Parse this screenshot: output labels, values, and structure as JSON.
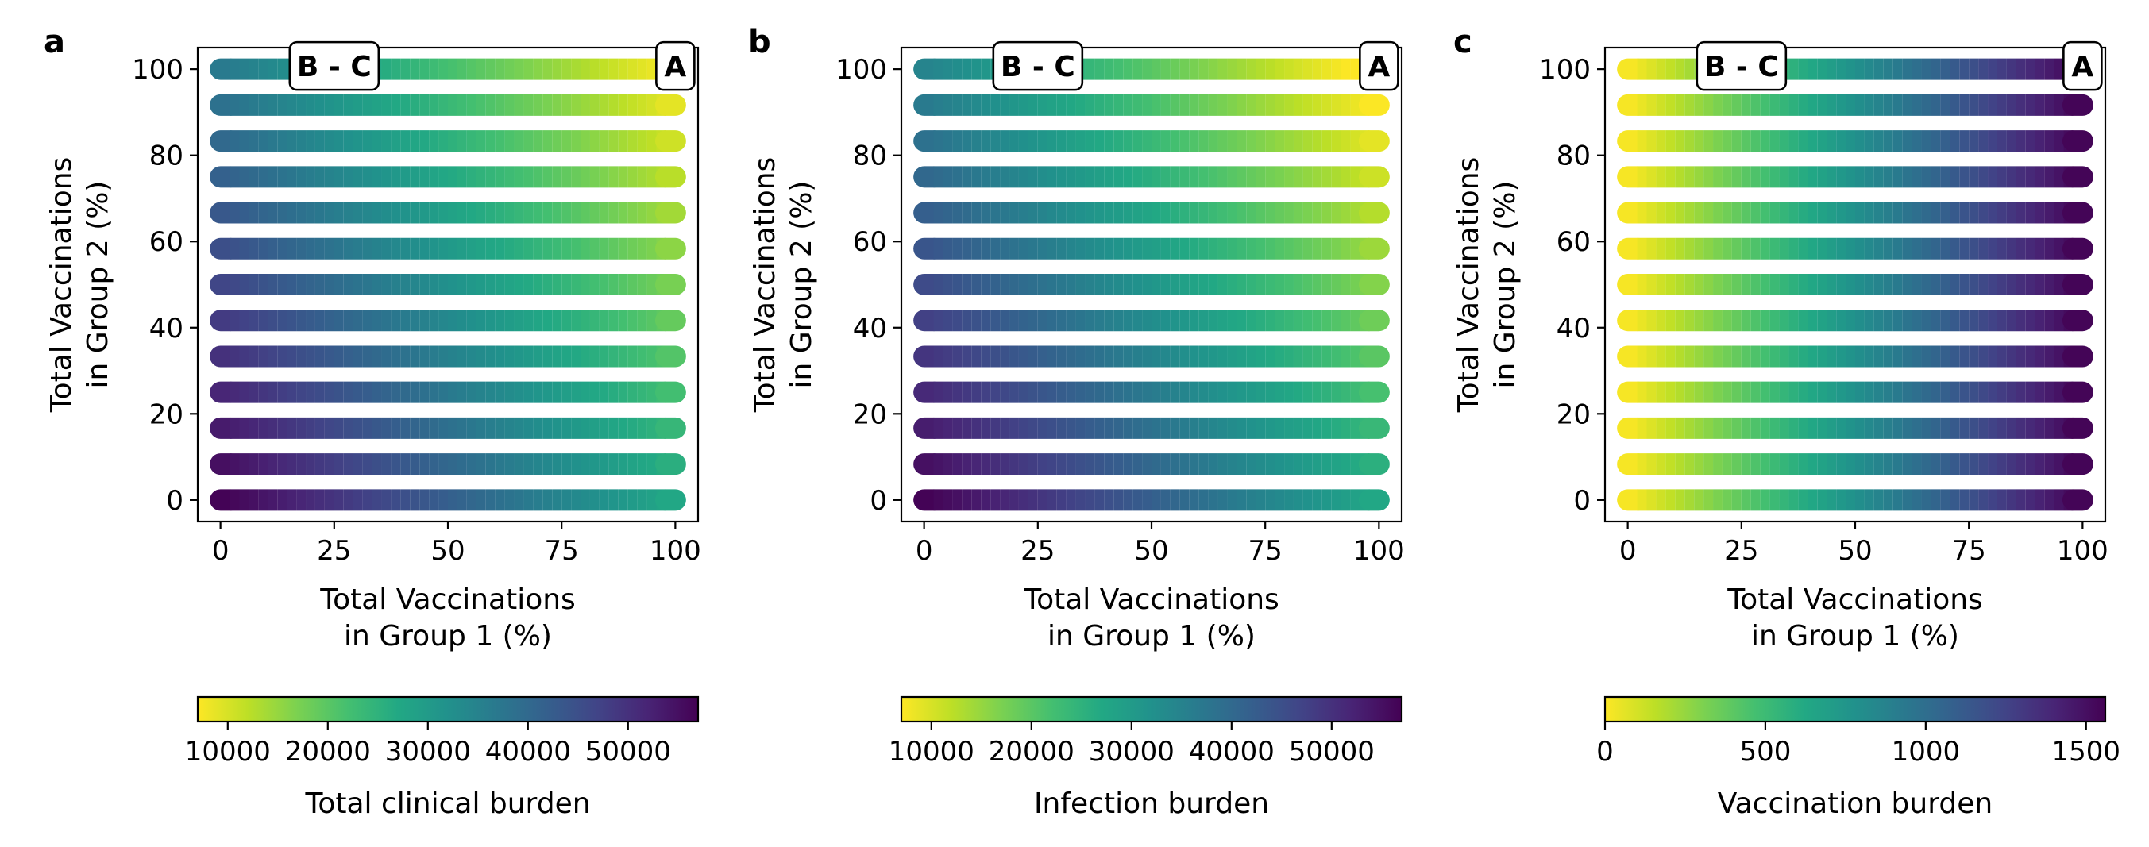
{
  "chart_data": [
    {
      "type": "scatter",
      "panel_label": "a",
      "xlabel_lines": [
        "Total Vaccinations",
        "in Group 1 (%)"
      ],
      "ylabel_lines": [
        "Total Vaccinations",
        "in Group 2 (%)"
      ],
      "xlim": [
        -5,
        105
      ],
      "ylim": [
        -5,
        105
      ],
      "xticks": [
        0,
        25,
        50,
        75,
        100
      ],
      "yticks": [
        0,
        20,
        40,
        60,
        80,
        100
      ],
      "rows_y": [
        0,
        8.33,
        16.67,
        25,
        33.33,
        41.67,
        50,
        58.33,
        66.67,
        75,
        83.33,
        91.67,
        100
      ],
      "x_range": [
        0,
        100
      ],
      "colormap": "viridis_r",
      "color_metric": "total_clinical",
      "annotations": [
        {
          "text": "B - C",
          "x": 25,
          "y": 100
        },
        {
          "text": "A",
          "x": 100,
          "y": 100
        }
      ],
      "colorbar": {
        "label": "Total clinical burden",
        "vmin": 7000,
        "vmax": 57000,
        "ticks": [
          10000,
          20000,
          30000,
          40000,
          50000
        ],
        "tick_labels": [
          "10000",
          "20000",
          "30000",
          "40000",
          "50000"
        ]
      }
    },
    {
      "type": "scatter",
      "panel_label": "b",
      "xlabel_lines": [
        "Total Vaccinations",
        "in Group 1 (%)"
      ],
      "ylabel_lines": [
        "Total Vaccinations",
        "in Group 2 (%)"
      ],
      "xlim": [
        -5,
        105
      ],
      "ylim": [
        -5,
        105
      ],
      "xticks": [
        0,
        25,
        50,
        75,
        100
      ],
      "yticks": [
        0,
        20,
        40,
        60,
        80,
        100
      ],
      "rows_y": [
        0,
        8.33,
        16.67,
        25,
        33.33,
        41.67,
        50,
        58.33,
        66.67,
        75,
        83.33,
        91.67,
        100
      ],
      "x_range": [
        0,
        100
      ],
      "colormap": "viridis_r",
      "color_metric": "infection",
      "annotations": [
        {
          "text": "B - C",
          "x": 25,
          "y": 100
        },
        {
          "text": "A",
          "x": 100,
          "y": 100
        }
      ],
      "colorbar": {
        "label": "Infection burden",
        "vmin": 7000,
        "vmax": 57000,
        "ticks": [
          10000,
          20000,
          30000,
          40000,
          50000
        ],
        "tick_labels": [
          "10000",
          "20000",
          "30000",
          "40000",
          "50000"
        ]
      }
    },
    {
      "type": "scatter",
      "panel_label": "c",
      "xlabel_lines": [
        "Total Vaccinations",
        "in Group 1 (%)"
      ],
      "ylabel_lines": [
        "Total Vaccinations",
        "in Group 2 (%)"
      ],
      "xlim": [
        -5,
        105
      ],
      "ylim": [
        -5,
        105
      ],
      "xticks": [
        0,
        25,
        50,
        75,
        100
      ],
      "yticks": [
        0,
        20,
        40,
        60,
        80,
        100
      ],
      "rows_y": [
        0,
        8.33,
        16.67,
        25,
        33.33,
        41.67,
        50,
        58.33,
        66.67,
        75,
        83.33,
        91.67,
        100
      ],
      "x_range": [
        0,
        100
      ],
      "colormap": "viridis_r",
      "color_metric": "vaccination",
      "annotations": [
        {
          "text": "B - C",
          "x": 25,
          "y": 100
        },
        {
          "text": "A",
          "x": 100,
          "y": 100
        }
      ],
      "colorbar": {
        "label": "Vaccination burden",
        "vmin": 0,
        "vmax": 1560,
        "ticks": [
          0,
          500,
          1000,
          1500
        ],
        "tick_labels": [
          "0",
          "500",
          "1000",
          "1500"
        ]
      }
    }
  ]
}
